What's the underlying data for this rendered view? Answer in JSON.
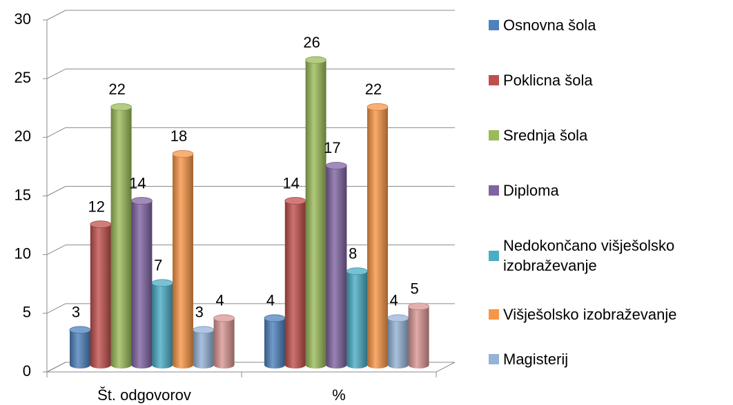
{
  "chart_data": {
    "type": "bar3d",
    "categories": [
      "Št. odgovorov",
      "%"
    ],
    "series": [
      {
        "name": "Osnovna šola",
        "color": "#4f81bd",
        "values": [
          3,
          4
        ]
      },
      {
        "name": "Poklicna šola",
        "color": "#c0504d",
        "values": [
          12,
          14
        ]
      },
      {
        "name": "Srednja šola",
        "color": "#9bbb59",
        "values": [
          22,
          26
        ]
      },
      {
        "name": "Diploma",
        "color": "#8064a2",
        "values": [
          14,
          17
        ]
      },
      {
        "name": "Nedokončano višješolsko izobraževanje",
        "color": "#4bacc6",
        "values": [
          7,
          8
        ]
      },
      {
        "name": "Višješolsko izobraževanje",
        "color": "#f79646",
        "values": [
          18,
          22
        ]
      },
      {
        "name": "Magisterij",
        "color": "#95b3d7",
        "values": [
          3,
          4
        ]
      },
      {
        "color": "#d99694",
        "values": [
          4,
          5
        ]
      }
    ],
    "ylim": [
      0,
      30
    ],
    "yticks": [
      0,
      5,
      10,
      15,
      20,
      25,
      30
    ],
    "grid": true,
    "legend": "right"
  }
}
